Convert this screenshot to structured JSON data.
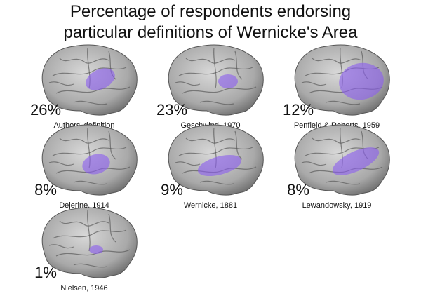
{
  "title_lines": [
    "Percentage of respondents endorsing",
    "particular definitions of Wernicke's Area"
  ],
  "panels": [
    {
      "percent": "26%",
      "label": "Authors' definition"
    },
    {
      "percent": "23%",
      "label": "Geschwind, 1970"
    },
    {
      "percent": "12%",
      "label": "Penfield & Roberts, 1959"
    },
    {
      "percent": "8%",
      "label": "Dejerine, 1914"
    },
    {
      "percent": "9%",
      "label": "Wernicke, 1881"
    },
    {
      "percent": "8%",
      "label": "Lewandowsky, 1919"
    },
    {
      "percent": "1%",
      "label": "Nielsen, 1946"
    }
  ]
}
